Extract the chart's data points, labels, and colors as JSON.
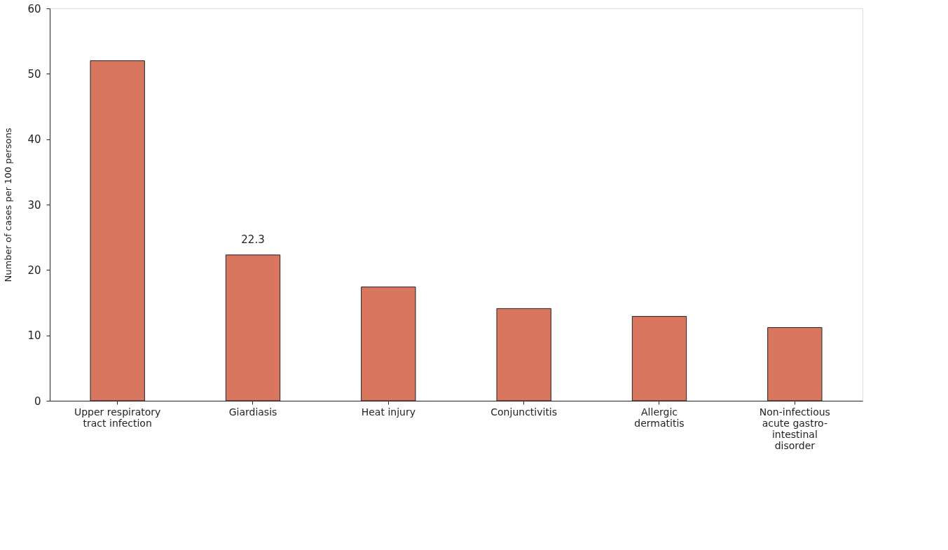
{
  "chart_data": {
    "type": "bar",
    "ylabel": "Number of cases per 100 persons",
    "categories": [
      "Upper respiratory tract infection",
      "Giardiasis",
      "Heat injury",
      "Conjunctivitis",
      "Allergic dermatitis",
      "Non-infectious acute gastro-intestinal disorder"
    ],
    "values": [
      52,
      22.3,
      17.4,
      14.1,
      12.9,
      11.2
    ],
    "value_labels": [
      null,
      "22.3",
      null,
      null,
      null,
      null
    ],
    "color": "#d9765f",
    "ylim": [
      0,
      60
    ],
    "yticks": [
      0,
      10,
      20,
      30,
      40,
      50,
      60
    ],
    "grid": false
  }
}
